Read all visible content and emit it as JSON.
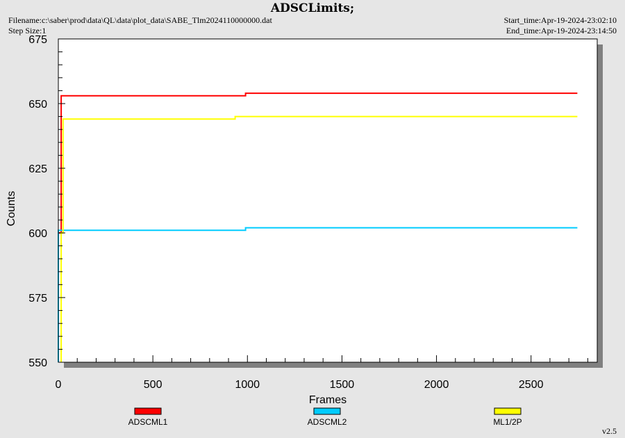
{
  "header": {
    "title": "ADSCLimits;",
    "filename": "Filename:c:\\saber\\prod\\data\\QL\\data\\plot_data\\SABE_Tlm2024110000000.dat",
    "step_size": "Step Size:1",
    "start_time": "Start_time:Apr-19-2024-23:02:10",
    "end_time": "End_time:Apr-19-2024-23:14:50"
  },
  "version": "v2.5",
  "chart_data": {
    "type": "line",
    "title": "ADSCLimits;",
    "xlabel": "Frames",
    "ylabel": "Counts",
    "xlim": [
      0,
      2850
    ],
    "ylim": [
      550,
      675
    ],
    "xticks": [
      0,
      500,
      1000,
      1500,
      2000,
      2500
    ],
    "yticks": [
      550,
      575,
      600,
      625,
      650,
      675
    ],
    "xtick_labels": [
      "0",
      "500",
      "1000",
      "1500",
      "2000",
      "2500"
    ],
    "ytick_labels": [
      "550",
      "575",
      "600",
      "625",
      "650",
      "675"
    ],
    "grid": false,
    "legend_position": "bottom",
    "series": [
      {
        "name": "ADSCML1",
        "color": "#ff0000",
        "x": [
          0,
          0,
          15,
          15,
          990,
          990,
          2745
        ],
        "y": [
          550,
          600,
          600,
          653,
          653,
          654,
          654
        ]
      },
      {
        "name": "ADSCML2",
        "color": "#00ccff",
        "x": [
          0,
          0,
          15,
          15,
          990,
          990,
          2745
        ],
        "y": [
          550,
          601,
          601,
          601,
          601,
          602,
          602
        ]
      },
      {
        "name": "ML1/2P",
        "color": "#ffff00",
        "x": [
          15,
          15,
          25,
          25,
          935,
          935,
          2745
        ],
        "y": [
          550,
          600,
          600,
          644,
          644,
          645,
          645
        ]
      }
    ]
  }
}
